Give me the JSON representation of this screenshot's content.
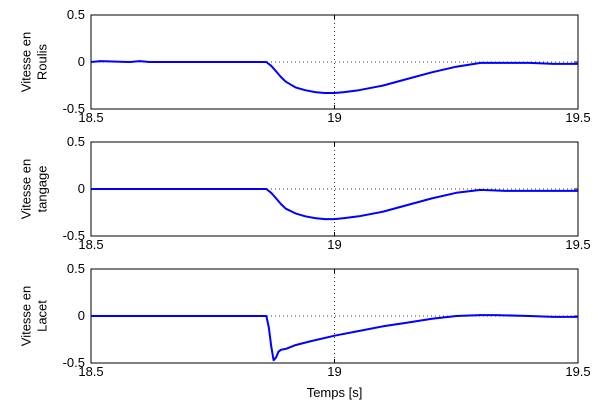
{
  "chart_data": [
    {
      "type": "line",
      "ylabel": [
        "Vitesse en",
        "Roulis"
      ],
      "xlim": [
        18.5,
        19.5
      ],
      "ylim": [
        -0.5,
        0.5
      ],
      "xticks": [
        "18.5",
        "19",
        "19.5"
      ],
      "yticks": [
        "0.5",
        "0",
        "-0.5"
      ],
      "grid": true,
      "series": [
        {
          "color": "#0000ff",
          "x": [
            18.5,
            18.52,
            18.58,
            18.6,
            18.62,
            18.7,
            18.8,
            18.86,
            18.87,
            18.88,
            18.89,
            18.9,
            18.92,
            18.94,
            18.96,
            18.98,
            19.0,
            19.02,
            19.05,
            19.1,
            19.15,
            19.2,
            19.25,
            19.3,
            19.35,
            19.4,
            19.45,
            19.5
          ],
          "y": [
            0,
            0.01,
            0,
            0.01,
            0,
            0,
            0,
            0,
            -0.04,
            -0.1,
            -0.16,
            -0.21,
            -0.27,
            -0.3,
            -0.32,
            -0.33,
            -0.33,
            -0.32,
            -0.3,
            -0.25,
            -0.18,
            -0.11,
            -0.05,
            -0.01,
            -0.01,
            -0.01,
            -0.02,
            -0.02
          ]
        }
      ]
    },
    {
      "type": "line",
      "ylabel": [
        "Vitesse en",
        "tangage"
      ],
      "xlim": [
        18.5,
        19.5
      ],
      "ylim": [
        -0.5,
        0.5
      ],
      "xticks": [
        "18.5",
        "19",
        "19.5"
      ],
      "yticks": [
        "0.5",
        "0",
        "-0.5"
      ],
      "grid": true,
      "series": [
        {
          "color": "#0000ff",
          "x": [
            18.5,
            18.6,
            18.7,
            18.8,
            18.86,
            18.87,
            18.88,
            18.89,
            18.9,
            18.92,
            18.94,
            18.96,
            18.98,
            19.0,
            19.02,
            19.05,
            19.1,
            19.15,
            19.2,
            19.25,
            19.3,
            19.35,
            19.4,
            19.45,
            19.5
          ],
          "y": [
            0,
            0,
            0,
            0,
            0,
            -0.04,
            -0.1,
            -0.16,
            -0.21,
            -0.26,
            -0.29,
            -0.31,
            -0.32,
            -0.32,
            -0.31,
            -0.29,
            -0.24,
            -0.17,
            -0.1,
            -0.04,
            -0.01,
            -0.02,
            -0.02,
            -0.02,
            -0.02
          ]
        }
      ]
    },
    {
      "type": "line",
      "ylabel": [
        "Vitesse en",
        "Lacet"
      ],
      "xlim": [
        18.5,
        19.5
      ],
      "ylim": [
        -0.5,
        0.5
      ],
      "xticks": [
        "18.5",
        "19",
        "19.5"
      ],
      "yticks": [
        "0.5",
        "0",
        "-0.5"
      ],
      "xlabel": "Temps [s]",
      "grid": true,
      "series": [
        {
          "color": "#0000ff",
          "x": [
            18.5,
            18.6,
            18.7,
            18.8,
            18.86,
            18.865,
            18.87,
            18.875,
            18.88,
            18.885,
            18.89,
            18.9,
            18.92,
            18.95,
            19.0,
            19.05,
            19.1,
            19.15,
            19.2,
            19.25,
            19.3,
            19.33,
            19.4,
            19.45,
            19.5
          ],
          "y": [
            0,
            0,
            0,
            0,
            0,
            -0.12,
            -0.32,
            -0.47,
            -0.44,
            -0.38,
            -0.36,
            -0.35,
            -0.31,
            -0.27,
            -0.21,
            -0.16,
            -0.11,
            -0.07,
            -0.03,
            0.0,
            0.01,
            0.01,
            0.0,
            -0.01,
            -0.01
          ]
        }
      ]
    }
  ]
}
